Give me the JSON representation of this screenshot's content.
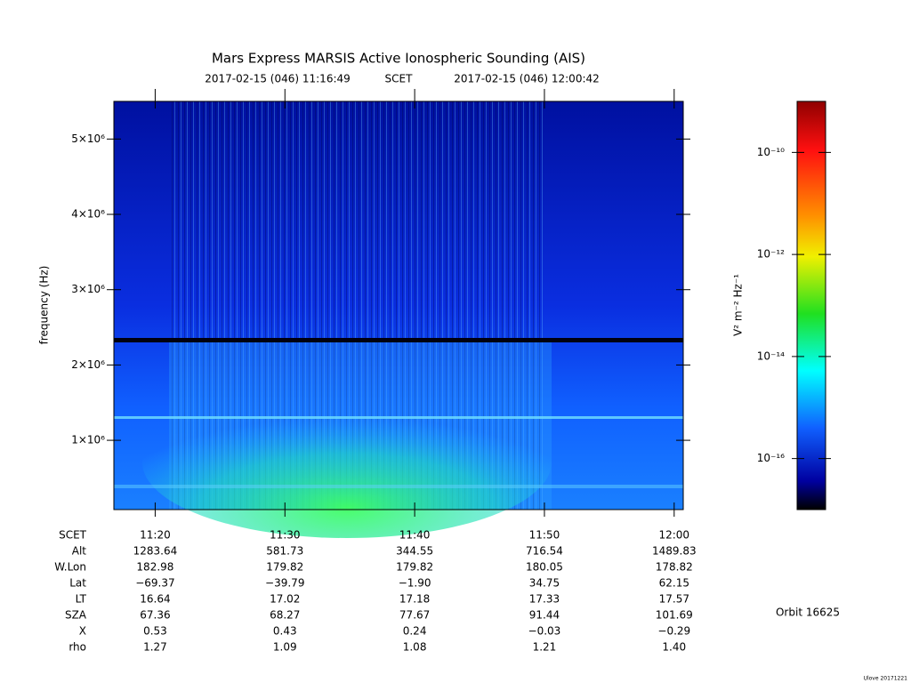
{
  "chart_data": {
    "type": "spectrogram",
    "title": "Mars Express MARSIS Active Ionospheric Sounding (AIS)",
    "start_time": "2017-02-15 (046) 11:16:49",
    "time_label": "SCET",
    "end_time": "2017-02-15 (046) 12:00:42",
    "ylabel": "frequency (Hz)",
    "ylim": [
      80000,
      5500000
    ],
    "yticks": [
      {
        "value": 1000000,
        "label": "1×10⁶"
      },
      {
        "value": 2000000,
        "label": "2×10⁶"
      },
      {
        "value": 3000000,
        "label": "3×10⁶"
      },
      {
        "value": 4000000,
        "label": "4×10⁶"
      },
      {
        "value": 5000000,
        "label": "5×10⁶"
      }
    ],
    "xlim": [
      "11:16:49",
      "12:00:42"
    ],
    "xticks": [
      "11:20",
      "11:30",
      "11:40",
      "11:50",
      "12:00"
    ],
    "colorbar": {
      "label": "V² m⁻² Hz⁻¹",
      "log": true,
      "zlim": [
        1e-17,
        1e-09
      ],
      "ticks": [
        {
          "value": 1e-10,
          "label": "10⁻¹⁰"
        },
        {
          "value": 1e-12,
          "label": "10⁻¹²"
        },
        {
          "value": 1e-14,
          "label": "10⁻¹⁴"
        },
        {
          "value": 1e-16,
          "label": "10⁻¹⁶"
        }
      ]
    },
    "ephemeris": {
      "time_row": "SCET",
      "rows": [
        {
          "label": "Alt",
          "values": [
            "1283.64",
            "581.73",
            "344.55",
            "716.54",
            "1489.83"
          ]
        },
        {
          "label": "W.Lon",
          "values": [
            "182.98",
            "179.82",
            "179.82",
            "180.05",
            "178.82"
          ]
        },
        {
          "label": "Lat",
          "values": [
            "−69.37",
            "−39.79",
            "−1.90",
            "34.75",
            "62.15"
          ]
        },
        {
          "label": "LT",
          "values": [
            "16.64",
            "17.02",
            "17.18",
            "17.33",
            "17.57"
          ]
        },
        {
          "label": "SZA",
          "values": [
            "67.36",
            "68.27",
            "77.67",
            "91.44",
            "101.69"
          ]
        },
        {
          "label": "X",
          "values": [
            "0.53",
            "0.43",
            "0.24",
            "−0.03",
            "−0.29"
          ]
        },
        {
          "label": "rho",
          "values": [
            "1.27",
            "1.09",
            "1.08",
            "1.21",
            "1.40"
          ]
        }
      ]
    },
    "orbit": "Orbit 16625",
    "footer": "Ulove 20171221"
  }
}
